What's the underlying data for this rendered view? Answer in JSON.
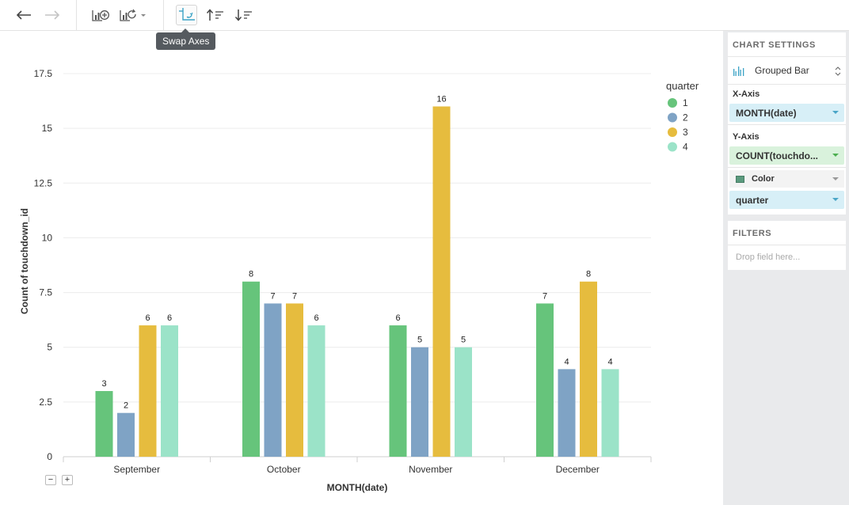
{
  "toolbar": {
    "tooltip": "Swap Axes",
    "icons": [
      "back-arrow-icon",
      "forward-arrow-icon",
      "add-chart-icon",
      "chart-refresh-icon",
      "swap-axes-icon",
      "sort-ascending-icon",
      "sort-descending-icon"
    ]
  },
  "sidebar": {
    "chart_settings_title": "CHART SETTINGS",
    "chart_type": "Grouped Bar",
    "x_axis_label": "X-Axis",
    "x_axis_field": "MONTH(date)",
    "y_axis_label": "Y-Axis",
    "y_axis_field": "COUNT(touchdo...",
    "color_label": "Color",
    "color_field": "quarter",
    "filters_title": "FILTERS",
    "filters_hint": "Drop field here..."
  },
  "chart_controls": {
    "zoom_out": "−",
    "zoom_in": "+"
  },
  "chart_data": {
    "type": "bar",
    "xlabel": "MONTH(date)",
    "ylabel": "Count of touchdown_id",
    "ylim": [
      0,
      17.5
    ],
    "yticks": [
      "0",
      "2.5",
      "5",
      "7.5",
      "10",
      "12.5",
      "15",
      "17.5"
    ],
    "categories": [
      "September",
      "October",
      "November",
      "December"
    ],
    "legend_title": "quarter",
    "legend_position": "top-right",
    "series": [
      {
        "name": "1",
        "color": "#66c47b",
        "values": [
          3,
          8,
          6,
          7
        ]
      },
      {
        "name": "2",
        "color": "#7fa3c5",
        "values": [
          2,
          7,
          5,
          4
        ]
      },
      {
        "name": "3",
        "color": "#e6bc3e",
        "values": [
          6,
          7,
          16,
          8
        ]
      },
      {
        "name": "4",
        "color": "#9be3c8",
        "values": [
          6,
          6,
          5,
          4
        ]
      }
    ]
  }
}
